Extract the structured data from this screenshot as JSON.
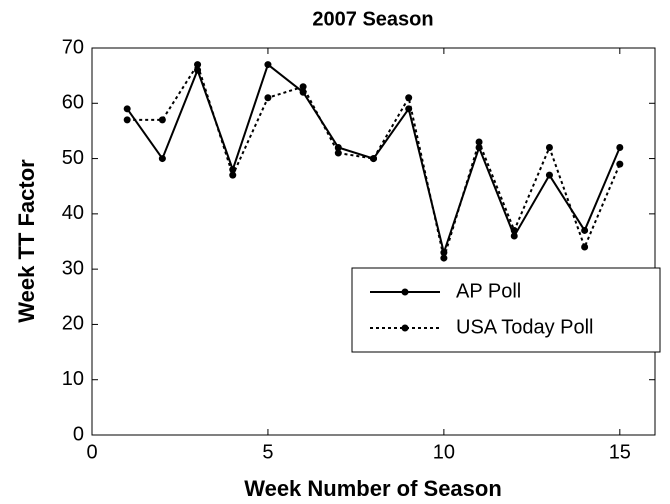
{
  "chart_data": {
    "type": "line",
    "title": "2007 Season",
    "x_label": "Week Number of Season",
    "y_label": "Week TT Factor",
    "x": [
      1,
      2,
      3,
      4,
      5,
      6,
      7,
      8,
      9,
      10,
      11,
      12,
      13,
      14,
      15
    ],
    "series": [
      {
        "name": "AP Poll",
        "color": "#000000",
        "linestyle": "solid",
        "values": [
          59,
          50,
          66,
          48,
          67,
          62,
          52,
          50,
          59,
          33,
          52,
          36,
          47,
          37,
          52
        ]
      },
      {
        "name": "USA Today Poll",
        "color": "#000000",
        "linestyle": "dotted",
        "values": [
          57,
          57,
          67,
          47,
          61,
          63,
          51,
          50,
          61,
          32,
          53,
          37,
          52,
          34,
          49
        ]
      }
    ],
    "xlim": [
      0,
      16
    ],
    "ylim": [
      0,
      70
    ],
    "xticks": [
      0,
      5,
      10,
      15
    ],
    "yticks": [
      0,
      10,
      20,
      30,
      40,
      50,
      60,
      70
    ]
  }
}
